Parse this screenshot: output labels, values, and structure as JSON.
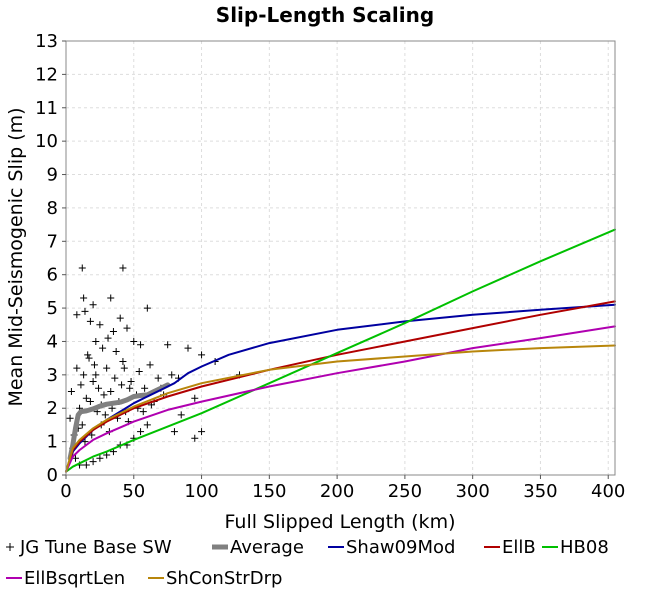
{
  "chart_data": {
    "type": "scatter",
    "title": "Slip-Length Scaling",
    "xlabel": "Full Slipped Length (km)",
    "ylabel": "Mean Mid-Seismogenic Slip (m)",
    "xlim": [
      0,
      405
    ],
    "ylim": [
      0,
      13
    ],
    "x_ticks": [
      "0",
      "50",
      "100",
      "150",
      "200",
      "250",
      "300",
      "350",
      "400"
    ],
    "y_ticks": [
      "0",
      "1",
      "2",
      "3",
      "4",
      "5",
      "6",
      "7",
      "8",
      "9",
      "10",
      "11",
      "12",
      "13"
    ],
    "grid": true,
    "legend_position": "bottom",
    "series": [
      {
        "name": "JG Tune Base SW",
        "type": "scatter",
        "marker": "plus",
        "color": "#000000",
        "points": [
          [
            12,
            6.2
          ],
          [
            13,
            5.3
          ],
          [
            20,
            5.1
          ],
          [
            14,
            4.9
          ],
          [
            33,
            5.3
          ],
          [
            42,
            6.2
          ],
          [
            60,
            5.0
          ],
          [
            8,
            4.8
          ],
          [
            18,
            4.6
          ],
          [
            25,
            4.5
          ],
          [
            40,
            4.7
          ],
          [
            35,
            4.3
          ],
          [
            45,
            4.4
          ],
          [
            50,
            4.0
          ],
          [
            22,
            4.0
          ],
          [
            55,
            3.9
          ],
          [
            75,
            3.9
          ],
          [
            90,
            3.8
          ],
          [
            100,
            3.6
          ],
          [
            110,
            3.4
          ],
          [
            128,
            3.0
          ],
          [
            83,
            2.9
          ],
          [
            95,
            2.3
          ],
          [
            70,
            2.6
          ],
          [
            65,
            2.2
          ],
          [
            85,
            1.8
          ],
          [
            100,
            1.3
          ],
          [
            80,
            1.3
          ],
          [
            95,
            1.1
          ],
          [
            60,
            1.5
          ],
          [
            4,
            2.5
          ],
          [
            5,
            0.8
          ],
          [
            3,
            1.7
          ],
          [
            7,
            0.5
          ],
          [
            10,
            0.3
          ],
          [
            15,
            0.3
          ],
          [
            20,
            0.4
          ],
          [
            25,
            0.5
          ],
          [
            30,
            0.6
          ],
          [
            35,
            0.7
          ],
          [
            40,
            0.9
          ],
          [
            45,
            0.9
          ],
          [
            50,
            1.1
          ],
          [
            55,
            1.3
          ],
          [
            12,
            1.5
          ],
          [
            18,
            2.2
          ],
          [
            24,
            2.6
          ],
          [
            30,
            3.2
          ],
          [
            36,
            2.9
          ],
          [
            42,
            3.4
          ],
          [
            48,
            2.8
          ],
          [
            54,
            3.1
          ],
          [
            8,
            3.2
          ],
          [
            10,
            2.0
          ],
          [
            16,
            3.6
          ],
          [
            22,
            3.0
          ],
          [
            28,
            2.4
          ],
          [
            34,
            2.0
          ],
          [
            38,
            1.7
          ],
          [
            44,
            1.9
          ],
          [
            52,
            2.4
          ],
          [
            58,
            2.6
          ],
          [
            62,
            3.3
          ],
          [
            68,
            2.9
          ],
          [
            72,
            2.4
          ],
          [
            78,
            3.0
          ],
          [
            6,
            1.2
          ],
          [
            9,
            1.4
          ],
          [
            14,
            1.0
          ],
          [
            19,
            1.2
          ],
          [
            26,
            1.5
          ],
          [
            32,
            1.3
          ],
          [
            46,
            1.6
          ],
          [
            27,
            3.8
          ],
          [
            31,
            4.1
          ],
          [
            37,
            3.7
          ],
          [
            43,
            3.2
          ],
          [
            13,
            3.0
          ],
          [
            17,
            3.5
          ],
          [
            21,
            3.3
          ],
          [
            11,
            2.7
          ],
          [
            15,
            2.3
          ],
          [
            23,
            1.9
          ],
          [
            29,
            1.8
          ],
          [
            39,
            2.2
          ],
          [
            47,
            2.6
          ],
          [
            53,
            2.0
          ],
          [
            57,
            1.9
          ],
          [
            63,
            2.1
          ],
          [
            20,
            2.8
          ],
          [
            26,
            2.1
          ],
          [
            33,
            2.5
          ],
          [
            41,
            2.7
          ]
        ]
      },
      {
        "name": "Average",
        "type": "line",
        "color": "#808080",
        "x": [
          3,
          5,
          7,
          9,
          11,
          15,
          20,
          25,
          30,
          35,
          40,
          45,
          50,
          55,
          60,
          65,
          70,
          75
        ],
        "y": [
          0.5,
          0.9,
          1.4,
          1.8,
          1.9,
          1.92,
          1.98,
          2.06,
          2.12,
          2.15,
          2.18,
          2.25,
          2.35,
          2.38,
          2.4,
          2.5,
          2.6,
          2.7
        ]
      },
      {
        "name": "Shaw09Mod",
        "type": "line",
        "color": "#0000a0",
        "x": [
          0,
          5,
          10,
          20,
          30,
          40,
          50,
          60,
          70,
          80,
          85,
          90,
          100,
          120,
          150,
          200,
          250,
          300,
          350,
          405
        ],
        "y": [
          0.1,
          0.7,
          0.95,
          1.35,
          1.65,
          1.9,
          2.15,
          2.35,
          2.55,
          2.75,
          2.9,
          3.05,
          3.25,
          3.6,
          3.95,
          4.35,
          4.6,
          4.8,
          4.95,
          5.1
        ]
      },
      {
        "name": "EllB",
        "type": "line",
        "color": "#b00000",
        "x": [
          0,
          5,
          10,
          20,
          30,
          50,
          75,
          100,
          150,
          200,
          250,
          300,
          350,
          405
        ],
        "y": [
          0.1,
          0.75,
          1.0,
          1.35,
          1.6,
          2.0,
          2.35,
          2.65,
          3.15,
          3.6,
          4.0,
          4.4,
          4.8,
          5.2
        ]
      },
      {
        "name": "HB08",
        "type": "line",
        "color": "#00c000",
        "x": [
          0,
          5,
          10,
          20,
          30,
          50,
          75,
          100,
          150,
          200,
          250,
          300,
          350,
          405
        ],
        "y": [
          0.1,
          0.25,
          0.35,
          0.55,
          0.7,
          1.05,
          1.45,
          1.85,
          2.75,
          3.65,
          4.55,
          5.5,
          6.4,
          7.35
        ]
      },
      {
        "name": "EllBsqrtLen",
        "type": "line",
        "color": "#b000b0",
        "x": [
          0,
          5,
          10,
          20,
          30,
          50,
          75,
          100,
          150,
          200,
          250,
          300,
          350,
          405
        ],
        "y": [
          0.1,
          0.55,
          0.75,
          1.05,
          1.25,
          1.6,
          1.95,
          2.2,
          2.65,
          3.05,
          3.4,
          3.8,
          4.1,
          4.45
        ]
      },
      {
        "name": "ShConStrDrp",
        "type": "line",
        "color": "#b8860b",
        "x": [
          0,
          5,
          10,
          20,
          30,
          50,
          75,
          100,
          150,
          200,
          250,
          300,
          350,
          405
        ],
        "y": [
          0.1,
          0.8,
          1.05,
          1.4,
          1.65,
          2.05,
          2.45,
          2.75,
          3.15,
          3.4,
          3.55,
          3.7,
          3.8,
          3.88
        ]
      }
    ]
  }
}
